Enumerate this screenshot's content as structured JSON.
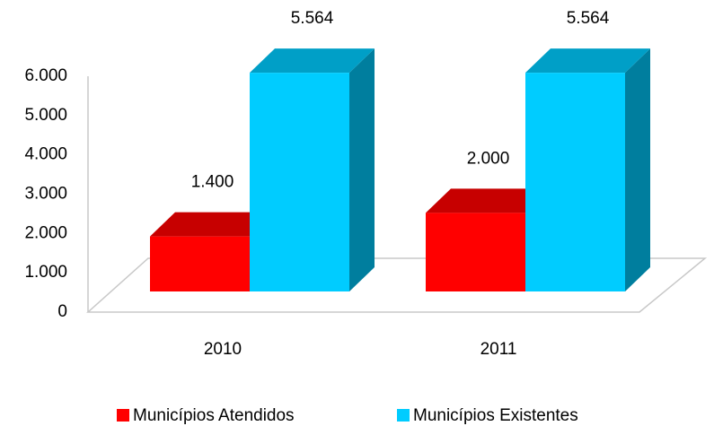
{
  "chart_data": {
    "type": "bar3d",
    "categories": [
      "2010",
      "2011"
    ],
    "series": [
      {
        "name": "Municípios Atendidos",
        "color": "#ff0000",
        "values": [
          1400,
          2000
        ],
        "value_labels": [
          "1.400",
          "2.000"
        ]
      },
      {
        "name": "Municípios Existentes",
        "color": "#00ccff",
        "values": [
          5564,
          5564
        ],
        "value_labels": [
          "5.564",
          "5.564"
        ]
      }
    ],
    "ylim": [
      0,
      6000
    ],
    "yticks": [
      0,
      {
        "value": 1000,
        "label": "1.000"
      },
      {
        "value": 2000,
        "label": "2.000"
      },
      {
        "value": 3000,
        "label": "3.000"
      },
      {
        "value": 4000,
        "label": "4.000"
      },
      {
        "value": 5000,
        "label": "5.000"
      },
      {
        "value": 6000,
        "label": "6.000"
      }
    ],
    "legend": "bottom"
  }
}
